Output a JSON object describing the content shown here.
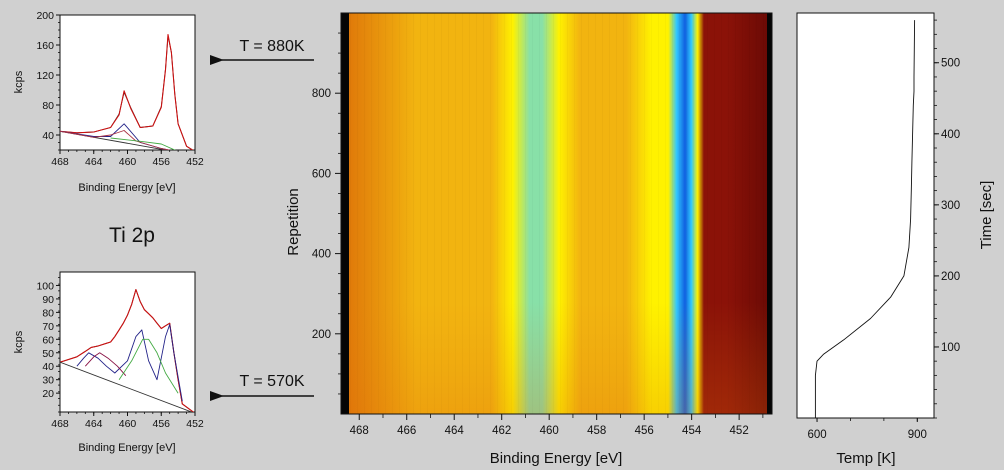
{
  "figure": {
    "title": "Ti 2p",
    "arrow_high": "T = 880K",
    "arrow_low": "T = 570K"
  },
  "chart_data": [
    {
      "id": "xps-880",
      "type": "line",
      "xlabel": "Binding Energy [eV]",
      "ylabel": "kcps",
      "xlim": [
        468,
        452
      ],
      "ylim": [
        20,
        200
      ],
      "xticks": [
        468,
        464,
        460,
        456,
        452
      ],
      "yticks": [
        40,
        80,
        120,
        160,
        200
      ],
      "grid": false,
      "series": [
        {
          "role": "measured",
          "color": "#222222",
          "x": [
            468,
            466,
            464,
            462,
            461,
            460.4,
            459.6,
            458.5,
            457,
            456,
            455.5,
            455.2,
            454.8,
            454.4,
            454,
            453,
            452
          ],
          "y": [
            45,
            43,
            44,
            50,
            68,
            97,
            76,
            50,
            52,
            78,
            128,
            172,
            150,
            95,
            55,
            25,
            18
          ]
        },
        {
          "role": "fit",
          "color": "#cc1111",
          "x": [
            468,
            466,
            464,
            462,
            461,
            460.4,
            459.6,
            458.5,
            457,
            456,
            455.5,
            455.2,
            454.8,
            454.4,
            454,
            453,
            452
          ],
          "y": [
            45,
            43,
            44,
            50,
            67,
            99,
            75,
            50,
            52,
            77,
            127,
            174,
            150,
            94,
            55,
            25,
            18
          ]
        },
        {
          "role": "background",
          "color": "#333333",
          "x": [
            468,
            452
          ],
          "y": [
            45,
            13
          ]
        },
        {
          "role": "component",
          "color": "#222288",
          "x": [
            468,
            464,
            462,
            460.4,
            458.5,
            456,
            452
          ],
          "y": [
            45,
            38,
            38,
            55,
            30,
            22,
            13
          ]
        },
        {
          "role": "component",
          "color": "#aa3344",
          "x": [
            468,
            464,
            462,
            460.4,
            459,
            456,
            452
          ],
          "y": [
            45,
            37,
            40,
            46,
            32,
            22,
            13
          ]
        },
        {
          "role": "component",
          "color": "#44aa44",
          "x": [
            462,
            458,
            456,
            454
          ],
          "y": [
            36,
            31,
            28,
            18
          ]
        }
      ]
    },
    {
      "id": "xps-570",
      "type": "line",
      "xlabel": "Binding Energy [eV]",
      "ylabel": "kcps",
      "xlim": [
        468,
        452
      ],
      "ylim": [
        6,
        110
      ],
      "xticks": [
        468,
        464,
        460,
        456,
        452
      ],
      "yticks": [
        20,
        30,
        40,
        50,
        60,
        70,
        80,
        90,
        100
      ],
      "grid": false,
      "series": [
        {
          "role": "measured",
          "color": "#222222",
          "x": [
            468,
            466,
            465,
            464.3,
            463.5,
            462.5,
            462,
            461.5,
            461,
            460.5,
            460,
            459.5,
            459,
            458.5,
            458,
            457.5,
            457,
            456.5,
            456,
            455.5,
            455,
            454.5,
            454,
            453.5,
            452
          ],
          "y": [
            43,
            47,
            51,
            54,
            55,
            57,
            58,
            62,
            67,
            72,
            78,
            86,
            97,
            88,
            82,
            79,
            76,
            72,
            68,
            70,
            72,
            50,
            30,
            12,
            5
          ]
        },
        {
          "role": "fit",
          "color": "#cc1111",
          "x": [
            468,
            466,
            465,
            464.3,
            463.5,
            462.5,
            462,
            461.5,
            461,
            460.5,
            460,
            459.5,
            459,
            458.5,
            458,
            457.5,
            457,
            456.5,
            456,
            455.5,
            455,
            454.5,
            454,
            453.5,
            452
          ],
          "y": [
            43,
            47,
            51,
            54,
            55,
            57,
            58,
            62,
            67,
            72,
            78,
            86,
            97,
            88,
            82,
            79,
            76,
            72,
            68,
            70,
            72,
            50,
            30,
            12,
            5
          ]
        },
        {
          "role": "background",
          "color": "#333333",
          "x": [
            468,
            452
          ],
          "y": [
            43,
            5
          ]
        },
        {
          "role": "component",
          "color": "#222288",
          "x": [
            466,
            465.2,
            464.6,
            463.5,
            462.5,
            461.5,
            460,
            459,
            458.3,
            457.5,
            456.5,
            455.5,
            455,
            454.5,
            453.5
          ],
          "y": [
            40,
            46,
            50,
            46,
            40,
            35,
            44,
            62,
            67,
            44,
            30,
            62,
            71,
            50,
            14
          ]
        },
        {
          "role": "component",
          "color": "#881144",
          "x": [
            465,
            464,
            463.3,
            462.3,
            461.2,
            460.2
          ],
          "y": [
            40,
            47,
            50,
            46,
            40,
            33
          ]
        },
        {
          "role": "component",
          "color": "#44aa44",
          "x": [
            461,
            459.5,
            458.2,
            457.5,
            456.5,
            455.5,
            454
          ],
          "y": [
            30,
            44,
            60,
            60,
            50,
            35,
            20
          ]
        }
      ]
    },
    {
      "id": "heatmap",
      "type": "heatmap",
      "xlabel": "Binding Energy [eV]",
      "ylabel": "Repetition",
      "xlim": [
        468.6,
        450.7
      ],
      "ylim": [
        0,
        1000
      ],
      "xticks": [
        468,
        466,
        464,
        462,
        460,
        458,
        456,
        454,
        452
      ],
      "yticks": [
        200,
        400,
        600,
        800
      ],
      "colormap": [
        "#e07a0a",
        "#f2b410",
        "#fff200",
        "#88e0a8",
        "#30c8ff",
        "#1060e0",
        "#8b1208"
      ]
    },
    {
      "id": "temperature",
      "type": "line",
      "xlabel": "Temp [K]",
      "ylabel": "Time [sec]",
      "xlim": [
        540,
        950
      ],
      "ylim": [
        0,
        570
      ],
      "xticks": [
        600,
        900
      ],
      "yticks": [
        100,
        200,
        300,
        400,
        500
      ],
      "series": [
        {
          "role": "temperature",
          "color": "#111111",
          "x": [
            595,
            595,
            600,
            620,
            680,
            760,
            820,
            860,
            875,
            880,
            882,
            884,
            886,
            888,
            890,
            890,
            891,
            892
          ],
          "y": [
            0,
            60,
            80,
            90,
            110,
            140,
            170,
            200,
            240,
            280,
            320,
            360,
            400,
            440,
            460,
            480,
            520,
            560
          ]
        }
      ]
    }
  ]
}
